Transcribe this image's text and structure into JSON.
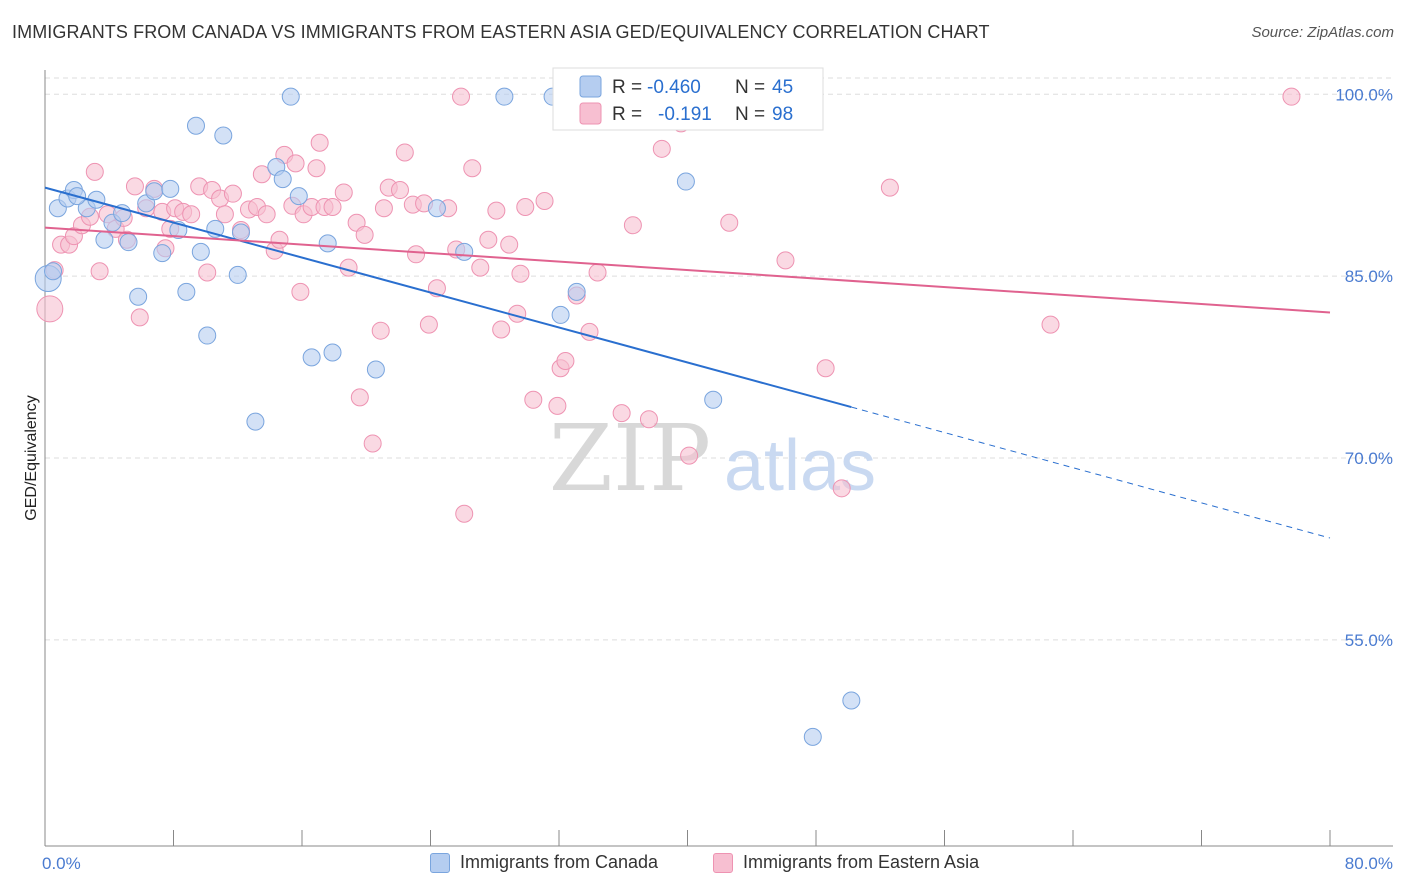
{
  "header": {
    "title": "IMMIGRANTS FROM CANADA VS IMMIGRANTS FROM EASTERN ASIA GED/EQUIVALENCY CORRELATION CHART",
    "source": "Source: ZipAtlas.com"
  },
  "watermark": {
    "zip": "ZIP",
    "atlas": "atlas"
  },
  "legend": {
    "r_label": "R =",
    "n_label": "N =",
    "rows": [
      {
        "r": "-0.460",
        "n": "45"
      },
      {
        "r": "-0.191",
        "n": "98"
      }
    ]
  },
  "colors": {
    "canada_fill": "#b5cdf0",
    "canada_stroke": "#7aa5de",
    "canada_line": "#2a6fcf",
    "asia_fill": "#f7bfd1",
    "asia_stroke": "#ee93b2",
    "asia_line": "#e0628f",
    "tick_label": "#4a7bd0",
    "grid": "#dddddd"
  },
  "chart_data": {
    "type": "scatter",
    "title": "IMMIGRANTS FROM CANADA VS IMMIGRANTS FROM EASTERN ASIA GED/EQUIVALENCY CORRELATION CHART",
    "xlabel": "",
    "ylabel": "GED/Equivalency",
    "xlim": [
      0,
      80
    ],
    "ylim": [
      38,
      102
    ],
    "x_tick_labels": [
      "0.0%",
      "80.0%"
    ],
    "y_ticks": [
      {
        "value": 100,
        "label": "100.0%"
      },
      {
        "value": 85,
        "label": "85.0%"
      },
      {
        "value": 70,
        "label": "70.0%"
      },
      {
        "value": 55,
        "label": "55.0%"
      }
    ],
    "grid": true,
    "legend_position": "top-center",
    "series": [
      {
        "name": "Immigrants from Canada",
        "r": -0.46,
        "n": 45,
        "trend": {
          "x0": 0,
          "y0": 92.3,
          "x1": 50.2,
          "y1": 74.2,
          "dashed_to_x": 80,
          "dashed_to_y": 63.4
        },
        "points": [
          [
            0.2,
            84.8
          ],
          [
            0.8,
            90.6
          ],
          [
            1.4,
            91.4
          ],
          [
            1.8,
            92.1
          ],
          [
            2.6,
            90.6
          ],
          [
            3.2,
            91.3
          ],
          [
            3.7,
            88.0
          ],
          [
            4.2,
            89.4
          ],
          [
            4.8,
            90.2
          ],
          [
            5.2,
            87.8
          ],
          [
            5.8,
            83.3
          ],
          [
            6.3,
            91.0
          ],
          [
            6.8,
            92.0
          ],
          [
            7.3,
            86.9
          ],
          [
            7.8,
            92.2
          ],
          [
            8.3,
            88.8
          ],
          [
            8.8,
            83.7
          ],
          [
            9.4,
            97.4
          ],
          [
            9.7,
            87.0
          ],
          [
            10.1,
            80.1
          ],
          [
            10.6,
            88.9
          ],
          [
            11.1,
            96.6
          ],
          [
            12.0,
            85.1
          ],
          [
            12.2,
            88.6
          ],
          [
            13.1,
            73.0
          ],
          [
            14.4,
            94.0
          ],
          [
            14.8,
            93.0
          ],
          [
            15.3,
            99.8
          ],
          [
            15.8,
            91.6
          ],
          [
            16.6,
            78.3
          ],
          [
            17.6,
            87.7
          ],
          [
            17.9,
            78.7
          ],
          [
            20.6,
            77.3
          ],
          [
            24.4,
            90.6
          ],
          [
            26.1,
            87.0
          ],
          [
            28.6,
            99.8
          ],
          [
            31.6,
            99.8
          ],
          [
            32.1,
            81.8
          ],
          [
            33.1,
            83.7
          ],
          [
            39.9,
            92.8
          ],
          [
            41.6,
            74.8
          ],
          [
            50.2,
            50.0
          ],
          [
            47.8,
            47.0
          ],
          [
            0.5,
            85.4
          ],
          [
            2.0,
            91.6
          ]
        ]
      },
      {
        "name": "Immigrants from Eastern Asia",
        "r": -0.191,
        "n": 98,
        "trend": {
          "x0": 0,
          "y0": 89.0,
          "x1": 80,
          "y1": 82.0
        },
        "points": [
          [
            0.3,
            82.3
          ],
          [
            0.6,
            85.5
          ],
          [
            1.0,
            87.6
          ],
          [
            1.5,
            87.6
          ],
          [
            1.8,
            88.3
          ],
          [
            2.3,
            89.2
          ],
          [
            2.8,
            89.9
          ],
          [
            3.4,
            85.4
          ],
          [
            3.9,
            90.1
          ],
          [
            4.4,
            88.9
          ],
          [
            4.9,
            89.8
          ],
          [
            5.1,
            88.0
          ],
          [
            5.6,
            92.4
          ],
          [
            5.9,
            81.6
          ],
          [
            6.3,
            90.6
          ],
          [
            6.8,
            92.2
          ],
          [
            7.3,
            90.3
          ],
          [
            7.8,
            88.9
          ],
          [
            7.5,
            87.3
          ],
          [
            8.1,
            90.6
          ],
          [
            8.6,
            90.3
          ],
          [
            9.1,
            90.1
          ],
          [
            9.6,
            92.4
          ],
          [
            10.1,
            85.3
          ],
          [
            10.4,
            92.1
          ],
          [
            10.9,
            91.4
          ],
          [
            11.2,
            90.1
          ],
          [
            11.7,
            91.8
          ],
          [
            12.2,
            88.8
          ],
          [
            12.7,
            90.5
          ],
          [
            13.2,
            90.7
          ],
          [
            13.5,
            93.4
          ],
          [
            13.8,
            90.1
          ],
          [
            14.3,
            87.1
          ],
          [
            14.6,
            88.0
          ],
          [
            14.9,
            95.0
          ],
          [
            15.4,
            90.8
          ],
          [
            15.6,
            94.3
          ],
          [
            15.9,
            83.7
          ],
          [
            16.1,
            90.1
          ],
          [
            16.6,
            90.7
          ],
          [
            16.9,
            93.9
          ],
          [
            17.4,
            90.7
          ],
          [
            17.9,
            90.7
          ],
          [
            18.6,
            91.9
          ],
          [
            18.9,
            85.7
          ],
          [
            19.4,
            89.4
          ],
          [
            19.6,
            75.0
          ],
          [
            19.9,
            88.4
          ],
          [
            20.4,
            71.2
          ],
          [
            20.9,
            80.5
          ],
          [
            21.1,
            90.6
          ],
          [
            21.4,
            92.3
          ],
          [
            22.1,
            92.1
          ],
          [
            22.4,
            95.2
          ],
          [
            22.9,
            90.9
          ],
          [
            23.1,
            86.8
          ],
          [
            23.6,
            91.0
          ],
          [
            23.9,
            81.0
          ],
          [
            24.4,
            84.0
          ],
          [
            25.1,
            90.6
          ],
          [
            25.6,
            87.2
          ],
          [
            26.1,
            65.4
          ],
          [
            26.6,
            93.9
          ],
          [
            27.1,
            85.7
          ],
          [
            27.6,
            88.0
          ],
          [
            28.1,
            90.4
          ],
          [
            28.4,
            80.6
          ],
          [
            28.9,
            87.6
          ],
          [
            29.4,
            81.9
          ],
          [
            29.6,
            85.2
          ],
          [
            29.9,
            90.7
          ],
          [
            30.4,
            74.8
          ],
          [
            31.1,
            91.2
          ],
          [
            31.9,
            74.3
          ],
          [
            32.1,
            77.4
          ],
          [
            32.4,
            78.0
          ],
          [
            33.1,
            83.4
          ],
          [
            33.9,
            80.4
          ],
          [
            34.4,
            85.3
          ],
          [
            35.9,
            73.7
          ],
          [
            36.6,
            89.2
          ],
          [
            37.6,
            73.2
          ],
          [
            38.4,
            95.5
          ],
          [
            40.1,
            70.2
          ],
          [
            42.6,
            89.4
          ],
          [
            46.1,
            86.3
          ],
          [
            48.6,
            77.4
          ],
          [
            49.6,
            67.5
          ],
          [
            52.6,
            92.3
          ],
          [
            62.6,
            81.0
          ],
          [
            77.6,
            99.8
          ],
          [
            38.1,
            99.8
          ],
          [
            39.6,
            97.6
          ],
          [
            43.1,
            99.8
          ],
          [
            25.9,
            99.8
          ],
          [
            17.1,
            96.0
          ],
          [
            3.1,
            93.6
          ]
        ]
      }
    ]
  }
}
